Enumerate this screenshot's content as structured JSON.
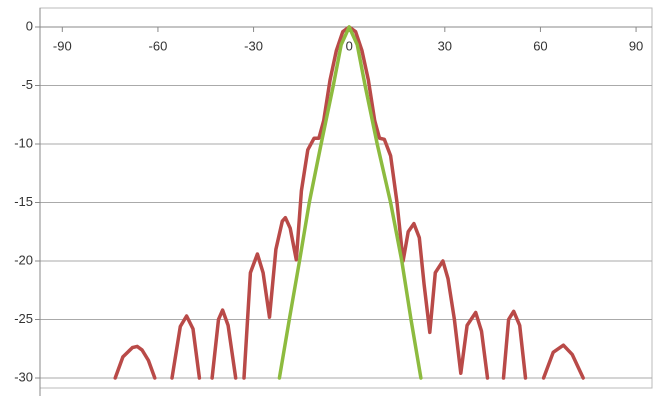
{
  "chart_data": {
    "type": "line",
    "xlim": [
      -97,
      95
    ],
    "ylim": [
      -30,
      0
    ],
    "xticks": [
      -90,
      -60,
      -30,
      0,
      30,
      60,
      90
    ],
    "yticks": [
      0,
      -5,
      -10,
      -15,
      -20,
      -25,
      -30
    ],
    "grid": true,
    "series": [
      {
        "color": "#b94a48",
        "x": [
          -73.4,
          -71,
          -68,
          -66.5,
          -65,
          -63,
          -61,
          null,
          -55.6,
          -53,
          -51,
          -49,
          -47,
          null,
          -43,
          -41,
          -39.7,
          -38,
          -35.6,
          null,
          -33,
          -31,
          -28.8,
          -27,
          -25,
          -23,
          -21,
          -20,
          -18.5,
          -16.6,
          -15,
          -13,
          -11,
          -9.5,
          -8,
          -6,
          -4,
          -2,
          0,
          2,
          4,
          6,
          8,
          9.5,
          11,
          13,
          15,
          16.9,
          18.5,
          20.3,
          22,
          23.5,
          25.3,
          27,
          29.4,
          31,
          33,
          35,
          37,
          39.7,
          41.5,
          43.4,
          null,
          48.4,
          50,
          51.6,
          53.5,
          55.3,
          null,
          61,
          64,
          67.2,
          70,
          73.4
        ],
        "values": [
          -30,
          -28.2,
          -27.4,
          -27.3,
          -27.6,
          -28.5,
          -30,
          null,
          -30,
          -25.6,
          -24.7,
          -25.8,
          -30,
          null,
          -30,
          -25,
          -24.2,
          -25.5,
          -30,
          null,
          -30,
          -21,
          -19.4,
          -21,
          -24.8,
          -19,
          -16.6,
          -16.3,
          -17.2,
          -19.9,
          -14,
          -10.5,
          -9.5,
          -9.5,
          -8,
          -4.5,
          -2,
          -0.4,
          0,
          -0.4,
          -2,
          -4.5,
          -8,
          -9.5,
          -9.6,
          -11,
          -15,
          -20,
          -17.5,
          -16.8,
          -18,
          -22,
          -26.1,
          -21,
          -20,
          -21.5,
          -25,
          -29.6,
          -25.5,
          -24.4,
          -26,
          -30,
          null,
          -30,
          -25,
          -24.3,
          -25.5,
          -30,
          null,
          -30,
          -27.8,
          -27.2,
          -28,
          -30
        ]
      },
      {
        "color": "#8dbb3f",
        "x": [
          -21.9,
          -18.8,
          -15.6,
          -12.5,
          -8.8,
          -5,
          -2.5,
          0,
          2.5,
          5,
          8.8,
          13,
          16.5,
          19.4,
          22.5
        ],
        "values": [
          -30,
          -25,
          -20,
          -15,
          -10,
          -5,
          -1.5,
          0,
          -1.5,
          -5,
          -10,
          -15,
          -20,
          -25,
          -30
        ]
      }
    ]
  }
}
